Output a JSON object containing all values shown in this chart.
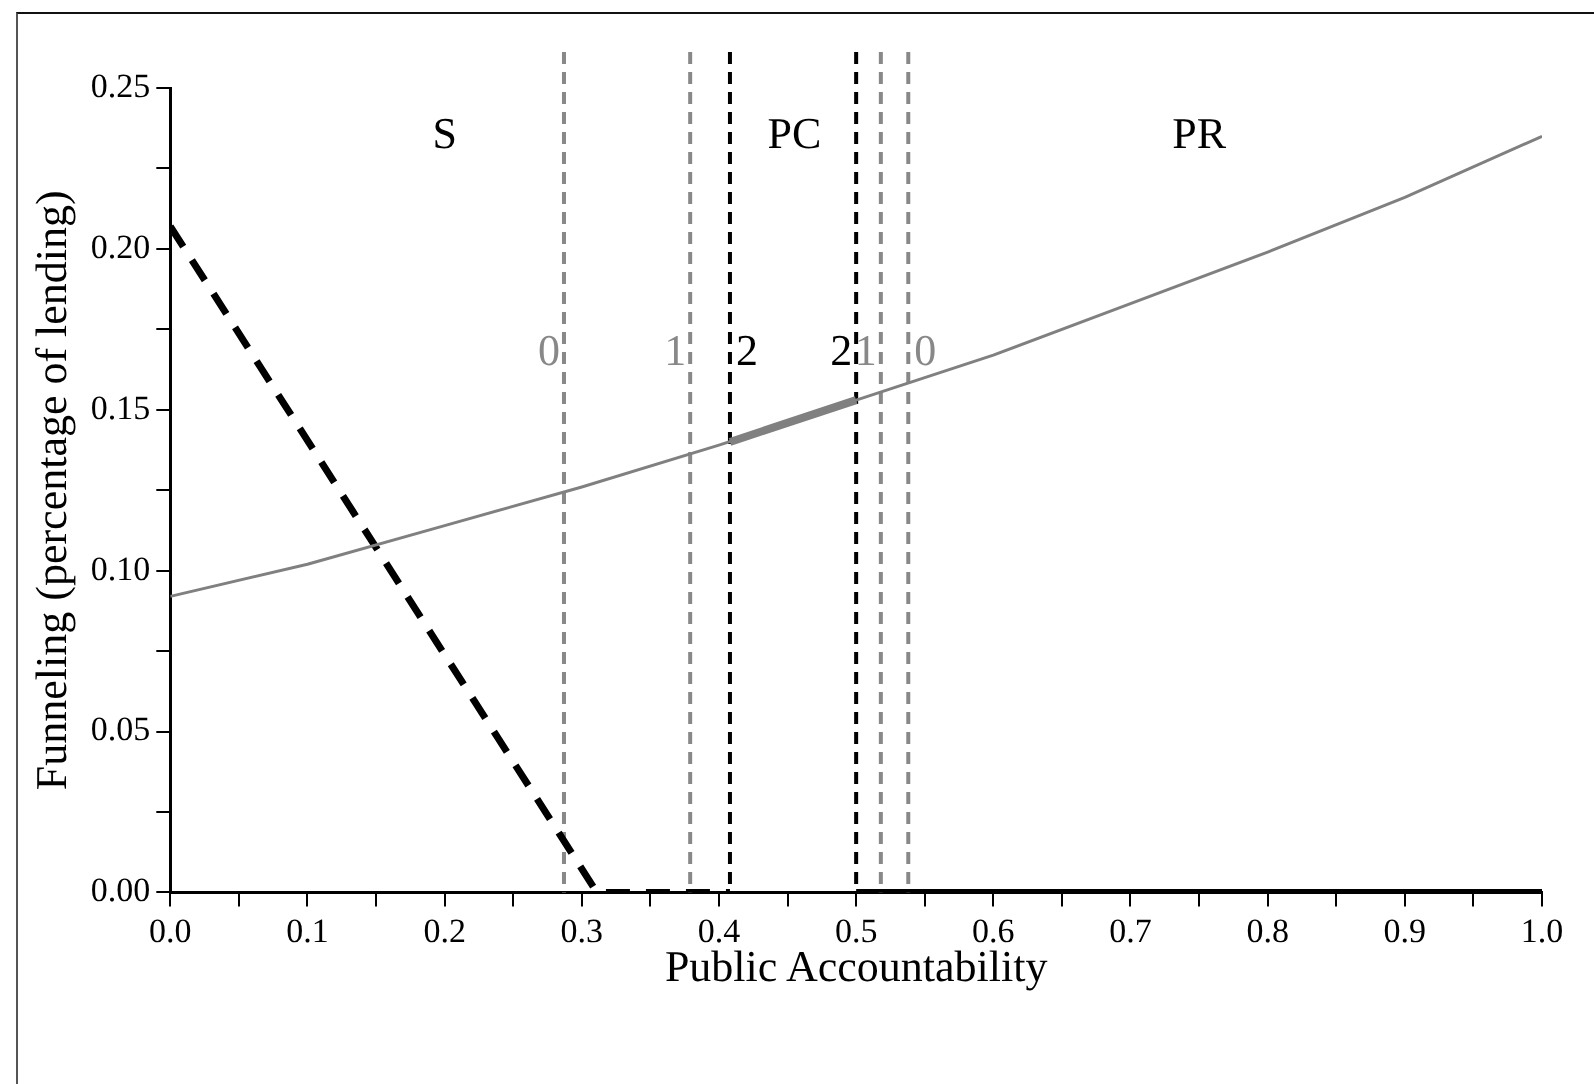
{
  "chart_data": {
    "type": "line",
    "xlabel": "Public Accountability",
    "ylabel": "Funneling (percentage of lending)",
    "xlim": [
      0,
      1
    ],
    "ylim": [
      0,
      0.25
    ],
    "xticks": [
      {
        "value": 0,
        "label": "0.0"
      },
      {
        "value": 0.05,
        "label": null
      },
      {
        "value": 0.1,
        "label": "0.1"
      },
      {
        "value": 0.15,
        "label": null
      },
      {
        "value": 0.2,
        "label": "0.2"
      },
      {
        "value": 0.25,
        "label": null
      },
      {
        "value": 0.3,
        "label": "0.3"
      },
      {
        "value": 0.35,
        "label": null
      },
      {
        "value": 0.4,
        "label": "0.4"
      },
      {
        "value": 0.45,
        "label": null
      },
      {
        "value": 0.5,
        "label": "0.5"
      },
      {
        "value": 0.55,
        "label": null
      },
      {
        "value": 0.6,
        "label": "0.6"
      },
      {
        "value": 0.65,
        "label": null
      },
      {
        "value": 0.7,
        "label": "0.7"
      },
      {
        "value": 0.75,
        "label": null
      },
      {
        "value": 0.8,
        "label": "0.8"
      },
      {
        "value": 0.85,
        "label": null
      },
      {
        "value": 0.9,
        "label": "0.9"
      },
      {
        "value": 0.95,
        "label": null
      },
      {
        "value": 1,
        "label": "1.0"
      }
    ],
    "yticks": [
      {
        "value": 0,
        "label": "0.00"
      },
      {
        "value": 0.025,
        "label": null
      },
      {
        "value": 0.05,
        "label": "0.05"
      },
      {
        "value": 0.075,
        "label": null
      },
      {
        "value": 0.1,
        "label": "0.10"
      },
      {
        "value": 0.125,
        "label": null
      },
      {
        "value": 0.15,
        "label": "0.15"
      },
      {
        "value": 0.175,
        "label": null
      },
      {
        "value": 0.2,
        "label": "0.20"
      },
      {
        "value": 0.225,
        "label": null
      },
      {
        "value": 0.25,
        "label": "0.25"
      }
    ],
    "grid": false,
    "legend": false,
    "marker": "none",
    "series": [
      {
        "color": "#808080",
        "line_style": "solid",
        "x": [
          0,
          0.1,
          0.2,
          0.3,
          0.4,
          0.5,
          0.6,
          0.7,
          0.8,
          0.9,
          1
        ],
        "values": [
          0.092,
          0.102,
          0.114,
          0.126,
          0.139,
          0.153,
          0.167,
          0.183,
          0.199,
          0.216,
          0.235
        ]
      },
      {
        "color": "#808080",
        "line_style": "solid",
        "x": [
          0.408,
          0.5
        ],
        "values": [
          0.14,
          0.153
        ]
      },
      {
        "color": "#000000",
        "line_style": "dashed",
        "x": [
          0,
          0.311,
          0.408
        ],
        "values": [
          0.207,
          0,
          0
        ]
      },
      {
        "color": "#000000",
        "line_style": "solid",
        "x": [
          0.5,
          1
        ],
        "values": [
          0,
          0
        ]
      }
    ],
    "ref_lines": [
      {
        "axis": "x",
        "value": 0.287,
        "color": "#888888",
        "line_style": "dashed"
      },
      {
        "axis": "x",
        "value": 0.379,
        "color": "#888888",
        "line_style": "dashed"
      },
      {
        "axis": "x",
        "value": 0.408,
        "color": "#000000",
        "line_style": "dashed"
      },
      {
        "axis": "x",
        "value": 0.5,
        "color": "#000000",
        "line_style": "dashed"
      },
      {
        "axis": "x",
        "value": 0.518,
        "color": "#888888",
        "line_style": "dashed"
      },
      {
        "axis": "x",
        "value": 0.538,
        "color": "#888888",
        "line_style": "dashed"
      }
    ],
    "annotations": [
      "S",
      "PC",
      "PR",
      "0",
      "1",
      "2",
      "2",
      "1",
      "0"
    ]
  }
}
